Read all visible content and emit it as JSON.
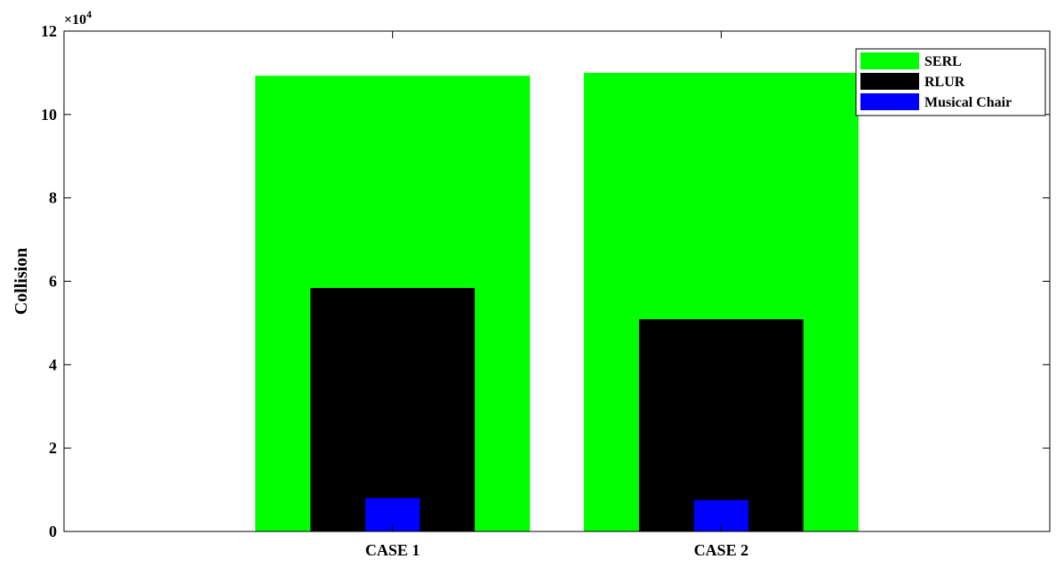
{
  "chart_data": {
    "type": "bar",
    "layout": "overlapped",
    "categories": [
      "CASE 1",
      "CASE 2"
    ],
    "series": [
      {
        "name": "SERL",
        "values": [
          109300,
          110000
        ],
        "color": "#00ff00"
      },
      {
        "name": "RLUR",
        "values": [
          58400,
          50900
        ],
        "color": "#000000"
      },
      {
        "name": "Musical Chair",
        "values": [
          8000,
          7500
        ],
        "color": "#0000ff"
      }
    ],
    "ylabel": "Collision",
    "xlabel": "",
    "ylim": [
      0,
      120000
    ],
    "yticks": [
      0,
      20000,
      40000,
      60000,
      80000,
      100000,
      120000
    ],
    "ytick_labels": [
      "0",
      "2",
      "4",
      "6",
      "8",
      "10",
      "12"
    ],
    "y_exponent_base": "×10",
    "y_exponent_power": "4",
    "legend_position": "top-right",
    "grid": false
  }
}
